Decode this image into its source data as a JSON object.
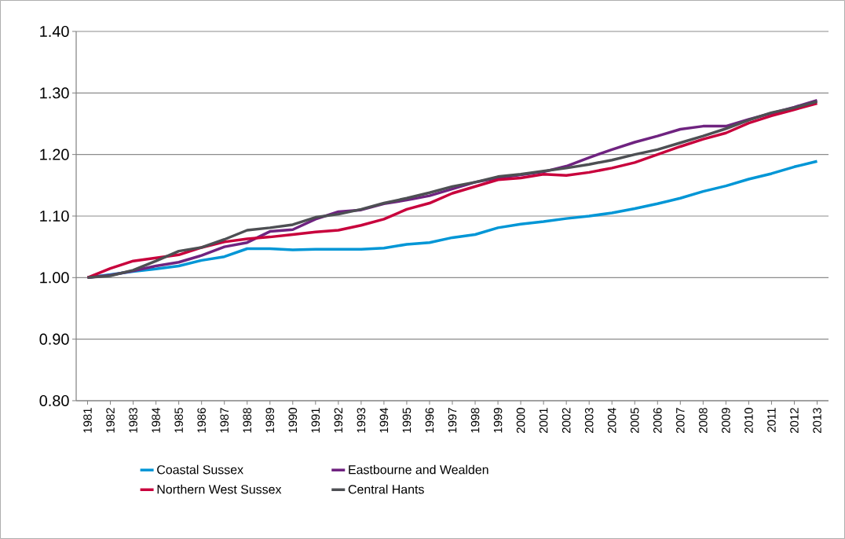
{
  "chart_data": {
    "type": "line",
    "categories": [
      "1981",
      "1982",
      "1983",
      "1984",
      "1985",
      "1986",
      "1987",
      "1988",
      "1989",
      "1990",
      "1991",
      "1992",
      "1993",
      "1994",
      "1995",
      "1996",
      "1997",
      "1998",
      "1999",
      "2000",
      "2001",
      "2002",
      "2003",
      "2004",
      "2005",
      "2006",
      "2007",
      "2008",
      "2009",
      "2010",
      "2011",
      "2012",
      "2013"
    ],
    "series": [
      {
        "name": "Coastal Sussex",
        "color": "#0096d6",
        "values": [
          1.0,
          1.005,
          1.01,
          1.014,
          1.019,
          1.028,
          1.034,
          1.047,
          1.047,
          1.045,
          1.046,
          1.046,
          1.046,
          1.048,
          1.054,
          1.057,
          1.065,
          1.07,
          1.081,
          1.087,
          1.091,
          1.096,
          1.1,
          1.105,
          1.112,
          1.12,
          1.129,
          1.14,
          1.149,
          1.16,
          1.169,
          1.18,
          1.189
        ]
      },
      {
        "name": "Eastbourne and Wealden",
        "color": "#6f2380",
        "values": [
          1.0,
          1.004,
          1.011,
          1.019,
          1.025,
          1.036,
          1.05,
          1.057,
          1.075,
          1.078,
          1.095,
          1.107,
          1.11,
          1.12,
          1.126,
          1.133,
          1.144,
          1.155,
          1.162,
          1.167,
          1.172,
          1.181,
          1.195,
          1.208,
          1.22,
          1.23,
          1.241,
          1.246,
          1.246,
          1.257,
          1.267,
          1.277,
          1.288
        ]
      },
      {
        "name": "Northern West Sussex",
        "color": "#c8003c",
        "values": [
          1.0,
          1.015,
          1.027,
          1.032,
          1.037,
          1.049,
          1.058,
          1.063,
          1.066,
          1.07,
          1.074,
          1.077,
          1.085,
          1.095,
          1.111,
          1.121,
          1.137,
          1.148,
          1.159,
          1.162,
          1.168,
          1.166,
          1.171,
          1.178,
          1.187,
          1.2,
          1.213,
          1.225,
          1.235,
          1.251,
          1.263,
          1.273,
          1.283
        ]
      },
      {
        "name": "Central Hants",
        "color": "#4d4f53",
        "values": [
          1.0,
          1.003,
          1.012,
          1.027,
          1.043,
          1.049,
          1.062,
          1.077,
          1.081,
          1.086,
          1.098,
          1.103,
          1.111,
          1.121,
          1.129,
          1.138,
          1.148,
          1.155,
          1.164,
          1.168,
          1.173,
          1.178,
          1.184,
          1.191,
          1.2,
          1.208,
          1.219,
          1.23,
          1.242,
          1.256,
          1.268,
          1.276,
          1.286
        ]
      }
    ],
    "ylim": [
      0.8,
      1.4
    ],
    "yticks": [
      {
        "value": 0.8,
        "label": "0.80"
      },
      {
        "value": 0.9,
        "label": "0.90"
      },
      {
        "value": 1.0,
        "label": "1.00"
      },
      {
        "value": 1.1,
        "label": "1.10"
      },
      {
        "value": 1.2,
        "label": "1.20"
      },
      {
        "value": 1.3,
        "label": "1.30"
      },
      {
        "value": 1.4,
        "label": "1.40"
      }
    ],
    "grid": "y",
    "legend": "bottom",
    "marker": "none",
    "line_style": "solid"
  }
}
